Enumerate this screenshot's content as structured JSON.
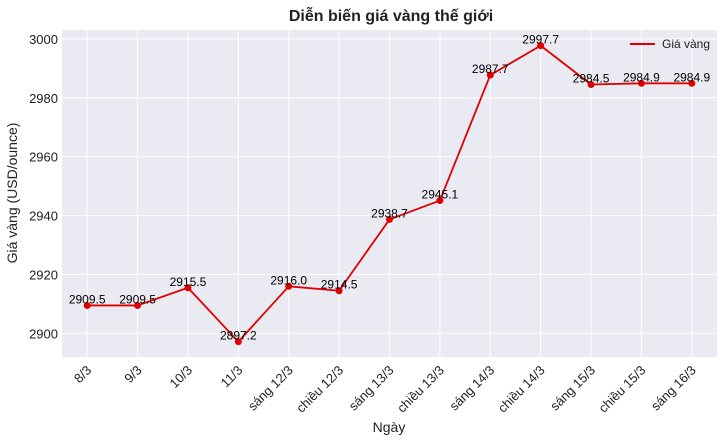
{
  "chart_data": {
    "type": "line",
    "title": "Diễn biến giá vàng thế giới",
    "xlabel": "Ngày",
    "ylabel": "Giá vàng (USD/ounce)",
    "categories": [
      "8/3",
      "9/3",
      "10/3",
      "11/3",
      "sáng 12/3",
      "chiều 12/3",
      "sáng 13/3",
      "chiều 13/3",
      "sáng 14/3",
      "chiều 14/3",
      "sáng 15/3",
      "chiều 15/3",
      "sáng 16/3"
    ],
    "series": [
      {
        "name": "Giá vàng",
        "values": [
          2909.5,
          2909.5,
          2915.5,
          2897.2,
          2916.0,
          2914.5,
          2938.7,
          2945.1,
          2987.7,
          2997.7,
          2984.5,
          2984.9,
          2984.9
        ],
        "labels": [
          "2909.5",
          "2909.5",
          "2915.5",
          "2897.2",
          "2916.0",
          "2914.5",
          "2938.7",
          "2945.1",
          "2987.7",
          "2997.7",
          "2984.5",
          "2984.9",
          "2984.9"
        ],
        "color": "#e00000"
      }
    ],
    "ylim": [
      2892,
      3003
    ],
    "yticks": [
      "2900",
      "2920",
      "2940",
      "2960",
      "2980",
      "3000"
    ],
    "grid": true,
    "legend_position": "top-right",
    "background": "#eaeaf2"
  }
}
